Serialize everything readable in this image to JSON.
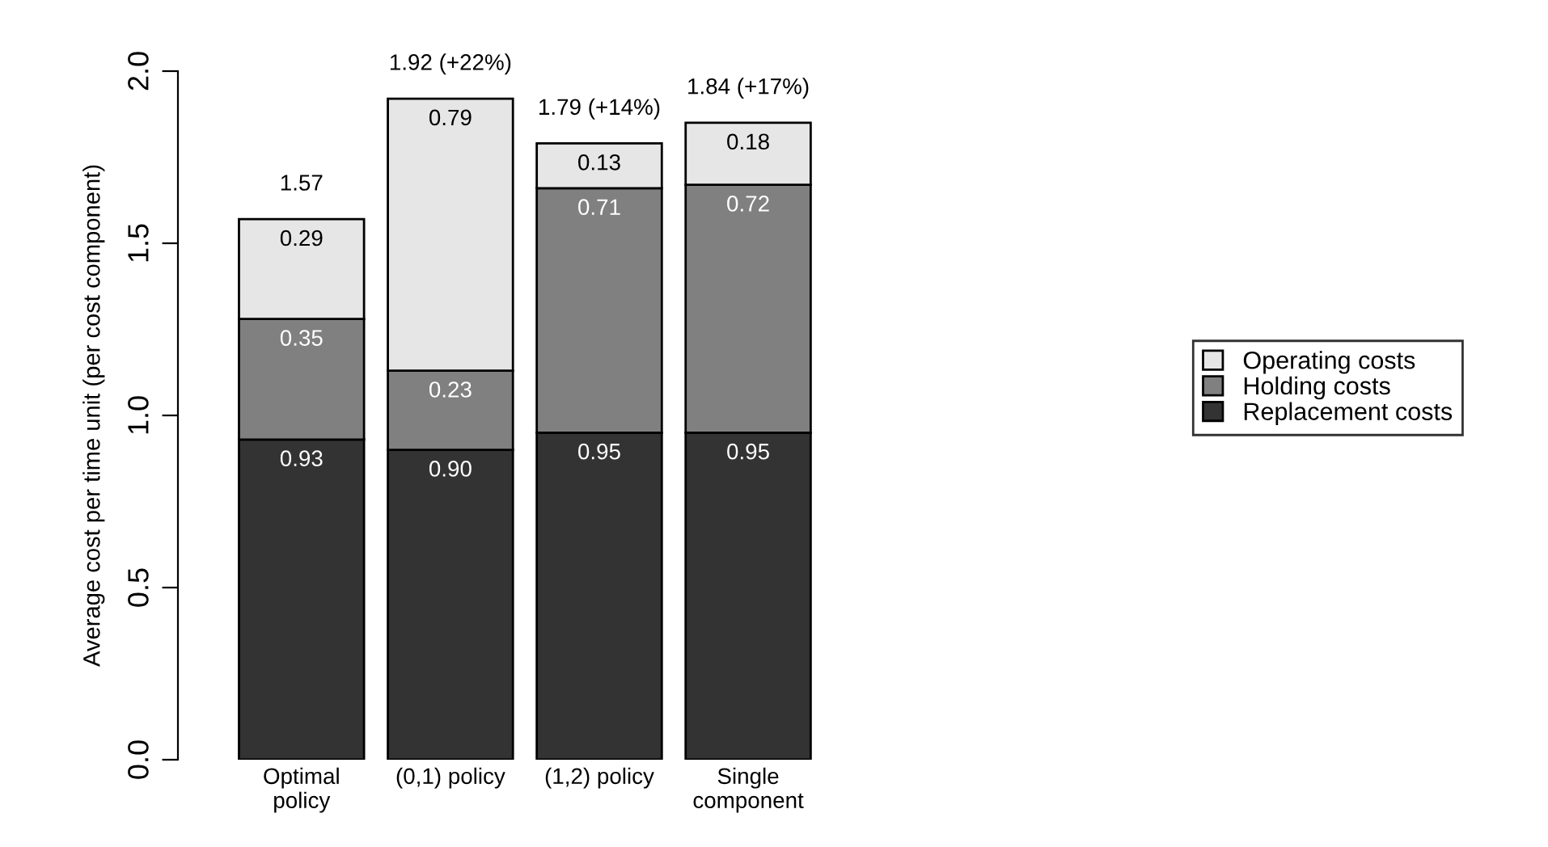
{
  "chart_data": {
    "type": "bar",
    "stacked": true,
    "ylabel": "Average cost per time unit (per cost component)",
    "categories": [
      "Optimal\npolicy",
      "(0,1) policy",
      "(1,2) policy",
      "Single\ncomponent"
    ],
    "series": [
      {
        "name": "Replacement costs",
        "color": "#333333",
        "values": [
          0.93,
          0.9,
          0.95,
          0.95
        ],
        "value_labels": [
          "0.93",
          "0.90",
          "0.95",
          "0.95"
        ]
      },
      {
        "name": "Holding costs",
        "color": "#808080",
        "values": [
          0.35,
          0.23,
          0.71,
          0.72
        ],
        "value_labels": [
          "0.35",
          "0.23",
          "0.71",
          "0.72"
        ]
      },
      {
        "name": "Operating costs",
        "color": "#e6e6e6",
        "values": [
          0.29,
          0.79,
          0.13,
          0.18
        ],
        "value_labels": [
          "0.29",
          "0.79",
          "0.13",
          "0.18"
        ]
      }
    ],
    "totals": [
      "1.57",
      "1.92 (+22%)",
      "1.79 (+14%)",
      "1.84 (+17%)"
    ],
    "ylim": [
      0,
      2
    ],
    "yticks": [
      {
        "value": 0,
        "label": "0.0"
      },
      {
        "value": 0.5,
        "label": "0.5"
      },
      {
        "value": 1,
        "label": "1.0"
      },
      {
        "value": 1.5,
        "label": "1.5"
      },
      {
        "value": 2,
        "label": "2.0"
      }
    ],
    "grid": false,
    "legend": "right"
  }
}
